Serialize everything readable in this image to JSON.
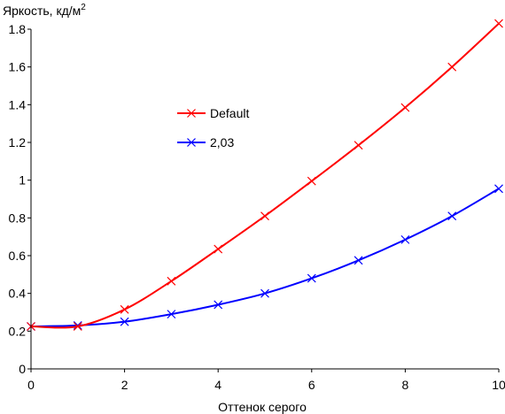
{
  "chart_data": {
    "type": "line",
    "title": "",
    "ylabel_main": "Яркость, кд/м",
    "ylabel_sup": "2",
    "xlabel": "Оттенок серого",
    "xlim": [
      0,
      10
    ],
    "ylim": [
      0,
      1.8
    ],
    "xticks": [
      0,
      2,
      4,
      6,
      8,
      10
    ],
    "xtick_labels": [
      "0",
      "2",
      "4",
      "6",
      "8",
      "10"
    ],
    "yticks": [
      0,
      0.2,
      0.4,
      0.6,
      0.8,
      1,
      1.2,
      1.4,
      1.6,
      1.8
    ],
    "ytick_labels": [
      "0",
      "0.2",
      "0.4",
      "0.6",
      "0.8",
      "1",
      "1.2",
      "1.4",
      "1.6",
      "1.8"
    ],
    "grid": false,
    "legend_position": "center-left",
    "series": [
      {
        "name": "Default",
        "color": "#ff0000",
        "marker": "x",
        "x": [
          0,
          1,
          2,
          3,
          4,
          5,
          6,
          7,
          8,
          9,
          10
        ],
        "y": [
          0.225,
          0.225,
          0.315,
          0.465,
          0.635,
          0.81,
          0.995,
          1.185,
          1.385,
          1.6,
          1.83
        ]
      },
      {
        "name": "2,03",
        "color": "#0000ff",
        "marker": "x",
        "x": [
          0,
          1,
          2,
          3,
          4,
          5,
          6,
          7,
          8,
          9,
          10
        ],
        "y": [
          0.225,
          0.23,
          0.25,
          0.29,
          0.34,
          0.4,
          0.48,
          0.575,
          0.685,
          0.81,
          0.955
        ]
      }
    ]
  }
}
